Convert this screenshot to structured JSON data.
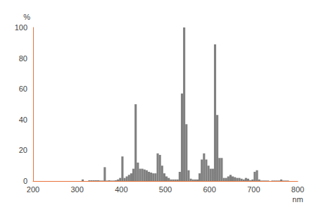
{
  "chart_data": {
    "type": "histogram",
    "x_label": "nm",
    "y_label": "%",
    "bins": [
      300,
      305,
      310,
      315,
      320,
      325,
      330,
      335,
      340,
      345,
      350,
      355,
      360,
      365,
      370,
      375,
      380,
      385,
      390,
      395,
      400,
      405,
      410,
      415,
      420,
      425,
      430,
      435,
      440,
      445,
      450,
      455,
      460,
      465,
      470,
      475,
      480,
      485,
      490,
      495,
      500,
      505,
      510,
      515,
      520,
      525,
      530,
      535,
      540,
      545,
      550,
      555,
      560,
      565,
      570,
      575,
      580,
      585,
      590,
      595,
      600,
      605,
      610,
      615,
      620,
      625,
      630,
      635,
      640,
      645,
      650,
      655,
      660,
      665,
      670,
      675,
      680,
      685,
      690,
      695,
      700,
      705,
      710,
      715,
      720,
      725,
      730,
      735,
      740,
      745,
      750,
      755,
      760,
      765,
      770,
      775,
      780
    ],
    "values": [
      0,
      0,
      1,
      0,
      0,
      0.5,
      0.5,
      0.5,
      0.5,
      0.5,
      0.3,
      0.3,
      9,
      0.3,
      0.5,
      0.3,
      0.3,
      0.5,
      1,
      2,
      16,
      2,
      3,
      4,
      5,
      8,
      50,
      12,
      8,
      8,
      7.5,
      7,
      6,
      5.5,
      5,
      5,
      18,
      17,
      10,
      5,
      3,
      2,
      1,
      1,
      1,
      1,
      6,
      57,
      100,
      37,
      7,
      1.5,
      1,
      1,
      1,
      5,
      14,
      18,
      14,
      10,
      8,
      8,
      89,
      43,
      15,
      15,
      2,
      2,
      3,
      4,
      3,
      2.5,
      2,
      2,
      1.5,
      1,
      2,
      1.5,
      0.5,
      1,
      6,
      7,
      1,
      0.3,
      0.3,
      0.3,
      0.3,
      0,
      0.3,
      0.3,
      0.3,
      0.3,
      1,
      0.3,
      0.3,
      0.3
    ],
    "color": "#808080",
    "xlim": [
      200,
      800
    ],
    "xticks": [
      200,
      300,
      400,
      500,
      600,
      700,
      800
    ],
    "ylim": [
      0,
      100
    ],
    "yticks": [
      0,
      20,
      40,
      60,
      80,
      100
    ],
    "grid": false
  }
}
